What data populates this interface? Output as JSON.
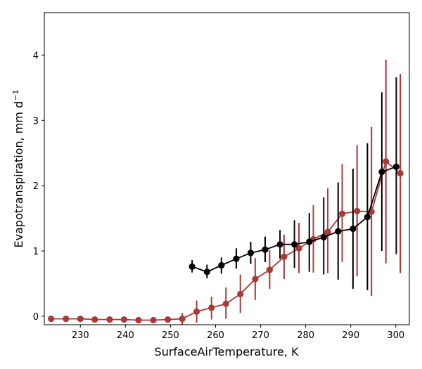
{
  "chart_data": {
    "type": "line",
    "title": "",
    "xlabel": "SurfaceAirTemperature,  K",
    "ylabel": "Evapotranspiration,  mm d",
    "ylabel_superscript": "−1",
    "xlim": [
      222,
      303
    ],
    "ylim": [
      -0.13,
      4.65
    ],
    "xticks": [
      230,
      240,
      250,
      260,
      270,
      280,
      290,
      300
    ],
    "yticks": [
      0,
      1,
      2,
      3,
      4
    ],
    "grid": false,
    "legend": "none",
    "series": [
      {
        "color": "#a83a3a",
        "x": [
          223.5,
          226.8,
          230.0,
          233.2,
          236.5,
          239.7,
          242.9,
          246.2,
          249.4,
          252.6,
          255.8,
          259.1,
          262.3,
          265.5,
          268.8,
          272.0,
          275.2,
          278.5,
          281.7,
          284.9,
          288.1,
          291.4,
          294.6,
          297.8,
          301.0
        ],
        "y": [
          -0.04,
          -0.04,
          -0.04,
          -0.05,
          -0.05,
          -0.05,
          -0.06,
          -0.06,
          -0.05,
          -0.04,
          0.07,
          0.13,
          0.19,
          0.34,
          0.57,
          0.71,
          0.91,
          1.04,
          1.18,
          1.29,
          1.57,
          1.61,
          1.6,
          2.37,
          2.19
        ],
        "err_low": [
          -0.04,
          -0.04,
          -0.04,
          -0.05,
          -0.05,
          -0.05,
          -0.06,
          -0.06,
          -0.05,
          -0.13,
          -0.1,
          -0.05,
          -0.04,
          0.05,
          0.25,
          0.42,
          0.57,
          0.66,
          0.67,
          0.66,
          0.83,
          0.61,
          0.31,
          0.81,
          0.66
        ],
        "err_high": [
          -0.04,
          -0.04,
          -0.04,
          -0.05,
          -0.05,
          -0.05,
          -0.06,
          -0.06,
          -0.05,
          0.05,
          0.24,
          0.3,
          0.44,
          0.64,
          0.89,
          1.01,
          1.25,
          1.43,
          1.7,
          1.96,
          2.33,
          2.62,
          2.9,
          3.93,
          3.71
        ]
      },
      {
        "color": "#000000",
        "x": [
          254.8,
          258.1,
          261.3,
          264.6,
          267.8,
          271.0,
          274.3,
          277.5,
          280.8,
          284.0,
          287.2,
          290.5,
          293.7,
          296.9,
          300.1
        ],
        "y": [
          0.76,
          0.68,
          0.78,
          0.88,
          0.97,
          1.02,
          1.1,
          1.1,
          1.14,
          1.21,
          1.3,
          1.34,
          1.52,
          2.21,
          2.29
        ],
        "err_low": [
          0.67,
          0.58,
          0.65,
          0.73,
          0.8,
          0.83,
          0.88,
          0.74,
          0.68,
          0.64,
          0.56,
          0.42,
          0.4,
          1.0,
          0.95
        ],
        "err_high": [
          0.86,
          0.79,
          0.9,
          1.04,
          1.14,
          1.22,
          1.32,
          1.47,
          1.58,
          1.82,
          2.05,
          2.26,
          2.65,
          3.43,
          3.66
        ]
      }
    ]
  }
}
